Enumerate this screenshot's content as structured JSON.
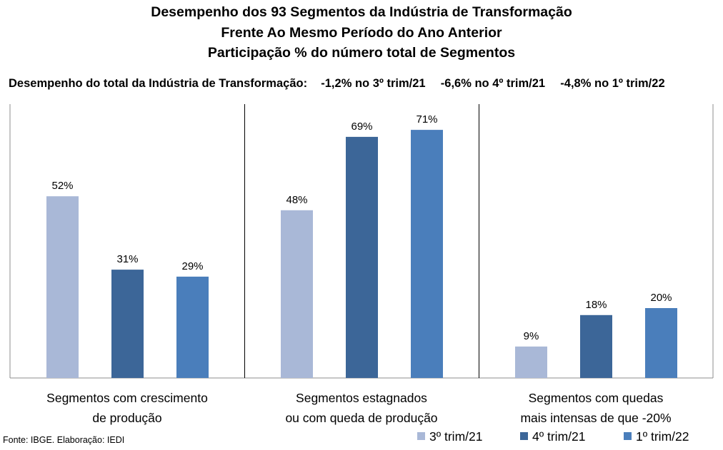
{
  "chart_data": {
    "type": "bar",
    "title_lines": [
      "Desempenho dos 93 Segmentos da Indústria de Transformação",
      "Frente Ao Mesmo Período do Ano Anterior",
      "Participação % do número total de Segmentos"
    ],
    "subtitle": {
      "lead": "Desempenho do total da Indústria de Transformação:",
      "items": [
        "-1,2% no 3º trim/21",
        "-6,6% no 4º trim/21",
        "-4,8% no 1º trim/22"
      ]
    },
    "categories": [
      [
        "Segmentos com crescimento",
        "de produção"
      ],
      [
        "Segmentos estagnados",
        "ou com queda de produção"
      ],
      [
        "Segmentos com quedas",
        "mais intensas de que -20%"
      ]
    ],
    "series": [
      {
        "name": "3º trim/21",
        "color": "#a9b8d7",
        "values": [
          52,
          48,
          9
        ],
        "labels": [
          "52%",
          "48%",
          "9%"
        ]
      },
      {
        "name": "4º trim/21",
        "color": "#3c6698",
        "values": [
          31,
          69,
          18
        ],
        "labels": [
          "31%",
          "69%",
          "18%"
        ]
      },
      {
        "name": "1º trim/22",
        "color": "#4a7ebb",
        "values": [
          29,
          71,
          20
        ],
        "labels": [
          "29%",
          "71%",
          "20%"
        ]
      }
    ],
    "ylim": [
      0,
      100
    ],
    "grid": false,
    "legend_position": "bottom-right",
    "source": "Fonte: IBGE. Elaboração: IEDI"
  }
}
